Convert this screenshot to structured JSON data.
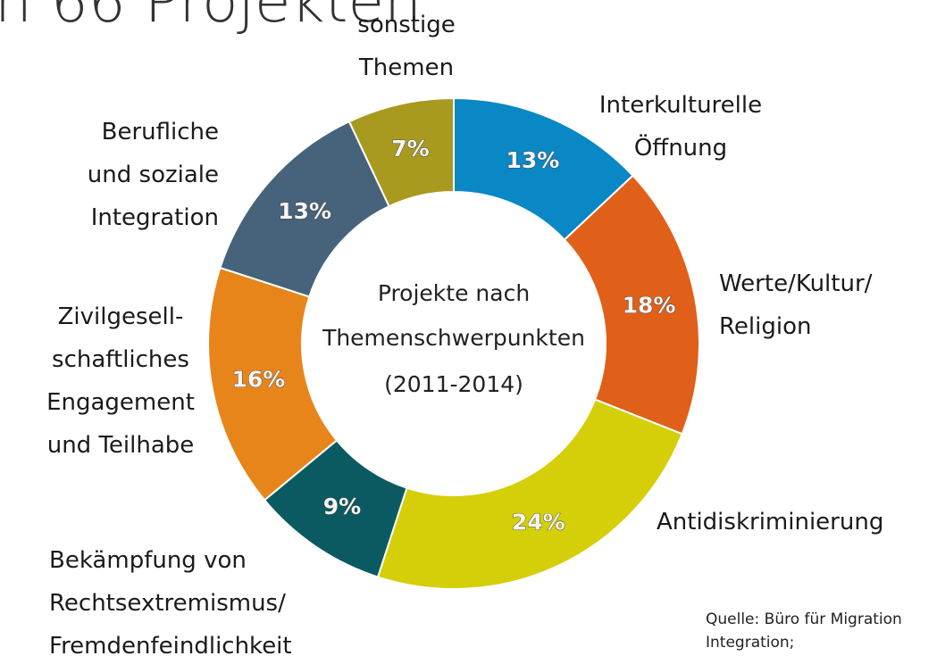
{
  "chart_data": {
    "type": "donut",
    "title": "n 66 Projekten",
    "center_text": [
      "Projekte nach",
      "Themenschwerpunkten",
      "(2011-2014)"
    ],
    "categories": [
      "Interkulturelle\nÖffnung",
      "Werte/Kultur/\nReligion",
      "Antidiskriminierung",
      "Bekämpfung von\nRechtsextremismus/\nFremdenfeindlichkeit",
      "Zivilgesell-\nschaftliches\nEngagement\nund Teilhabe",
      "Berufliche\nund soziale\nIntegration",
      "sonstige\nThemen"
    ],
    "values": [
      13,
      18,
      24,
      9,
      16,
      13,
      7
    ],
    "value_labels": [
      "13%",
      "18%",
      "24%",
      "9%",
      "16%",
      "13%",
      "7%"
    ],
    "colors": [
      "#0a87c5",
      "#e0601a",
      "#d4cf08",
      "#0b5a62",
      "#e8851a",
      "#46637b",
      "#a89a1f"
    ],
    "source": [
      "Quelle: Büro für Migration",
      "Integration;"
    ]
  }
}
